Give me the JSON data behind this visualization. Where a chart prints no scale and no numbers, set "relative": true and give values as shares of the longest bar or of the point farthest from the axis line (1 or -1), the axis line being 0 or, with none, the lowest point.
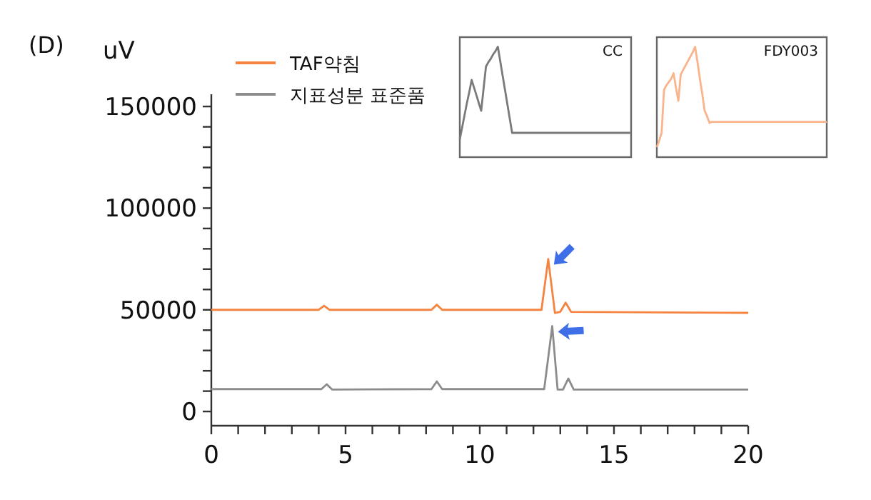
{
  "chart_data": [
    {
      "type": "line",
      "title": "(D)",
      "ylabel": "uV",
      "legend": "top left",
      "xlim": [
        0,
        20
      ],
      "xticks": [
        0,
        {
          "value": 1,
          "label": null
        },
        {
          "value": 2,
          "label": null
        },
        {
          "value": 3,
          "label": null
        },
        {
          "value": 4,
          "label": null
        },
        5,
        {
          "value": 6,
          "label": null
        },
        {
          "value": 7,
          "label": null
        },
        {
          "value": 8,
          "label": null
        },
        {
          "value": 9,
          "label": null
        },
        10,
        {
          "value": 11,
          "label": null
        },
        {
          "value": 12,
          "label": null
        },
        {
          "value": 13,
          "label": null
        },
        {
          "value": 14,
          "label": null
        },
        15,
        {
          "value": 16,
          "label": null
        },
        {
          "value": 17,
          "label": null
        },
        {
          "value": 18,
          "label": null
        },
        {
          "value": 19,
          "label": null
        },
        20
      ],
      "ylim": [
        -7000,
        156000
      ],
      "yticks": [
        0,
        {
          "value": 10000,
          "label": null
        },
        {
          "value": 20000,
          "label": null
        },
        {
          "value": 30000,
          "label": null
        },
        {
          "value": 40000,
          "label": null
        },
        50000,
        {
          "value": 60000,
          "label": null
        },
        {
          "value": 70000,
          "label": null
        },
        {
          "value": 80000,
          "label": null
        },
        {
          "value": 90000,
          "label": null
        },
        100000,
        {
          "value": 110000,
          "label": null
        },
        {
          "value": 120000,
          "label": null
        },
        {
          "value": 130000,
          "label": null
        },
        {
          "value": 140000,
          "label": null
        },
        150000
      ],
      "series": [
        {
          "name": "TAF약침",
          "color": "#f4843f",
          "x": [
            0,
            4.0,
            4.2,
            4.4,
            8.2,
            8.4,
            8.6,
            12.3,
            12.55,
            12.8,
            13.0,
            13.2,
            13.4,
            20
          ],
          "values": [
            50000,
            50000,
            52000,
            50000,
            50000,
            52500,
            50000,
            50000,
            75000,
            48500,
            49000,
            53500,
            49000,
            48500
          ]
        },
        {
          "name": "지표성분 표준품",
          "color": "#8c8c8c",
          "x": [
            0,
            4.1,
            4.3,
            4.5,
            8.2,
            8.4,
            8.6,
            12.4,
            12.7,
            12.9,
            13.1,
            13.3,
            13.5,
            20
          ],
          "values": [
            11000,
            11000,
            13400,
            10800,
            11000,
            14800,
            11000,
            11000,
            42000,
            10800,
            10800,
            16200,
            10800,
            10800
          ]
        }
      ]
    },
    {
      "type": "line",
      "title": "CC",
      "relative": true,
      "categories": [
        null,
        null,
        null,
        null,
        null,
        null,
        null,
        null,
        null,
        null,
        null,
        null,
        null,
        null,
        null,
        null,
        null,
        null,
        null,
        null,
        null,
        null,
        null,
        null,
        null,
        null,
        null,
        null,
        null,
        null,
        null,
        null,
        null,
        null,
        null,
        null,
        null,
        null,
        null,
        null,
        null,
        null,
        null,
        null,
        null,
        null,
        null,
        null,
        null,
        null,
        null,
        null,
        null,
        null,
        null,
        null,
        null,
        null,
        null,
        null,
        null,
        null,
        null,
        null,
        null,
        null,
        null,
        null,
        null,
        null,
        null,
        null,
        null
      ],
      "series": [
        {
          "color": "#7a7a7a",
          "values": [
            0.16,
            0.27,
            0.38,
            0.49,
            0.59,
            0.7,
            0.63,
            0.56,
            0.49,
            0.42,
            0.62,
            0.82,
            0.86,
            0.89,
            0.93,
            0.96,
            1,
            0.87,
            0.74,
            0.61,
            0.48,
            0.35,
            0.22,
            0.22,
            0.22,
            0.22,
            0.22,
            0.22,
            0.22,
            0.22,
            0.22,
            0.22,
            0.22,
            0.22,
            0.22,
            0.22,
            0.22,
            0.22,
            0.22,
            0.22,
            0.22,
            0.22,
            0.22,
            0.22,
            0.22,
            0.22,
            0.22,
            0.22,
            0.22,
            0.22,
            0.22,
            0.22,
            0.22,
            0.22,
            0.22,
            0.22,
            0.22,
            0.22,
            0.22,
            0.22,
            0.22,
            0.22,
            0.22,
            0.22,
            0.22,
            0.22,
            0.22,
            0.22,
            0.22,
            0.22,
            0.22,
            0.22,
            0.22
          ]
        }
      ]
    },
    {
      "type": "line",
      "title": "FDY003",
      "relative": true,
      "categories": [
        null,
        null,
        null,
        null,
        null,
        null,
        null,
        null,
        null,
        null,
        null,
        null,
        null,
        null,
        null,
        null,
        null,
        null,
        null,
        null,
        null,
        null,
        null,
        null,
        null,
        null,
        null,
        null,
        null,
        null,
        null,
        null,
        null,
        null,
        null,
        null,
        null,
        null,
        null,
        null,
        null,
        null,
        null,
        null,
        null,
        null,
        null,
        null,
        null,
        null,
        null,
        null,
        null,
        null,
        null,
        null,
        null,
        null,
        null,
        null,
        null,
        null,
        null,
        null,
        null,
        null,
        null,
        null,
        null,
        null,
        null,
        null
      ],
      "series": [
        {
          "color": "#f9b48c",
          "values": [
            0.09,
            0.15,
            0.22,
            0.61,
            0.65,
            0.68,
            0.71,
            0.76,
            0.63,
            0.51,
            0.75,
            0.79,
            0.83,
            0.87,
            0.91,
            0.95,
            1,
            0.86,
            0.71,
            0.57,
            0.42,
            0.37,
            0.31,
            0.32,
            0.32,
            0.32,
            0.32,
            0.32,
            0.32,
            0.32,
            0.32,
            0.32,
            0.32,
            0.32,
            0.32,
            0.32,
            0.32,
            0.32,
            0.32,
            0.32,
            0.32,
            0.32,
            0.32,
            0.32,
            0.32,
            0.32,
            0.32,
            0.32,
            0.32,
            0.32,
            0.32,
            0.32,
            0.32,
            0.32,
            0.32,
            0.32,
            0.32,
            0.32,
            0.32,
            0.32,
            0.32,
            0.32,
            0.32,
            0.32,
            0.32,
            0.32,
            0.32,
            0.32,
            0.32,
            0.32,
            0.32,
            0.32
          ]
        }
      ]
    }
  ]
}
